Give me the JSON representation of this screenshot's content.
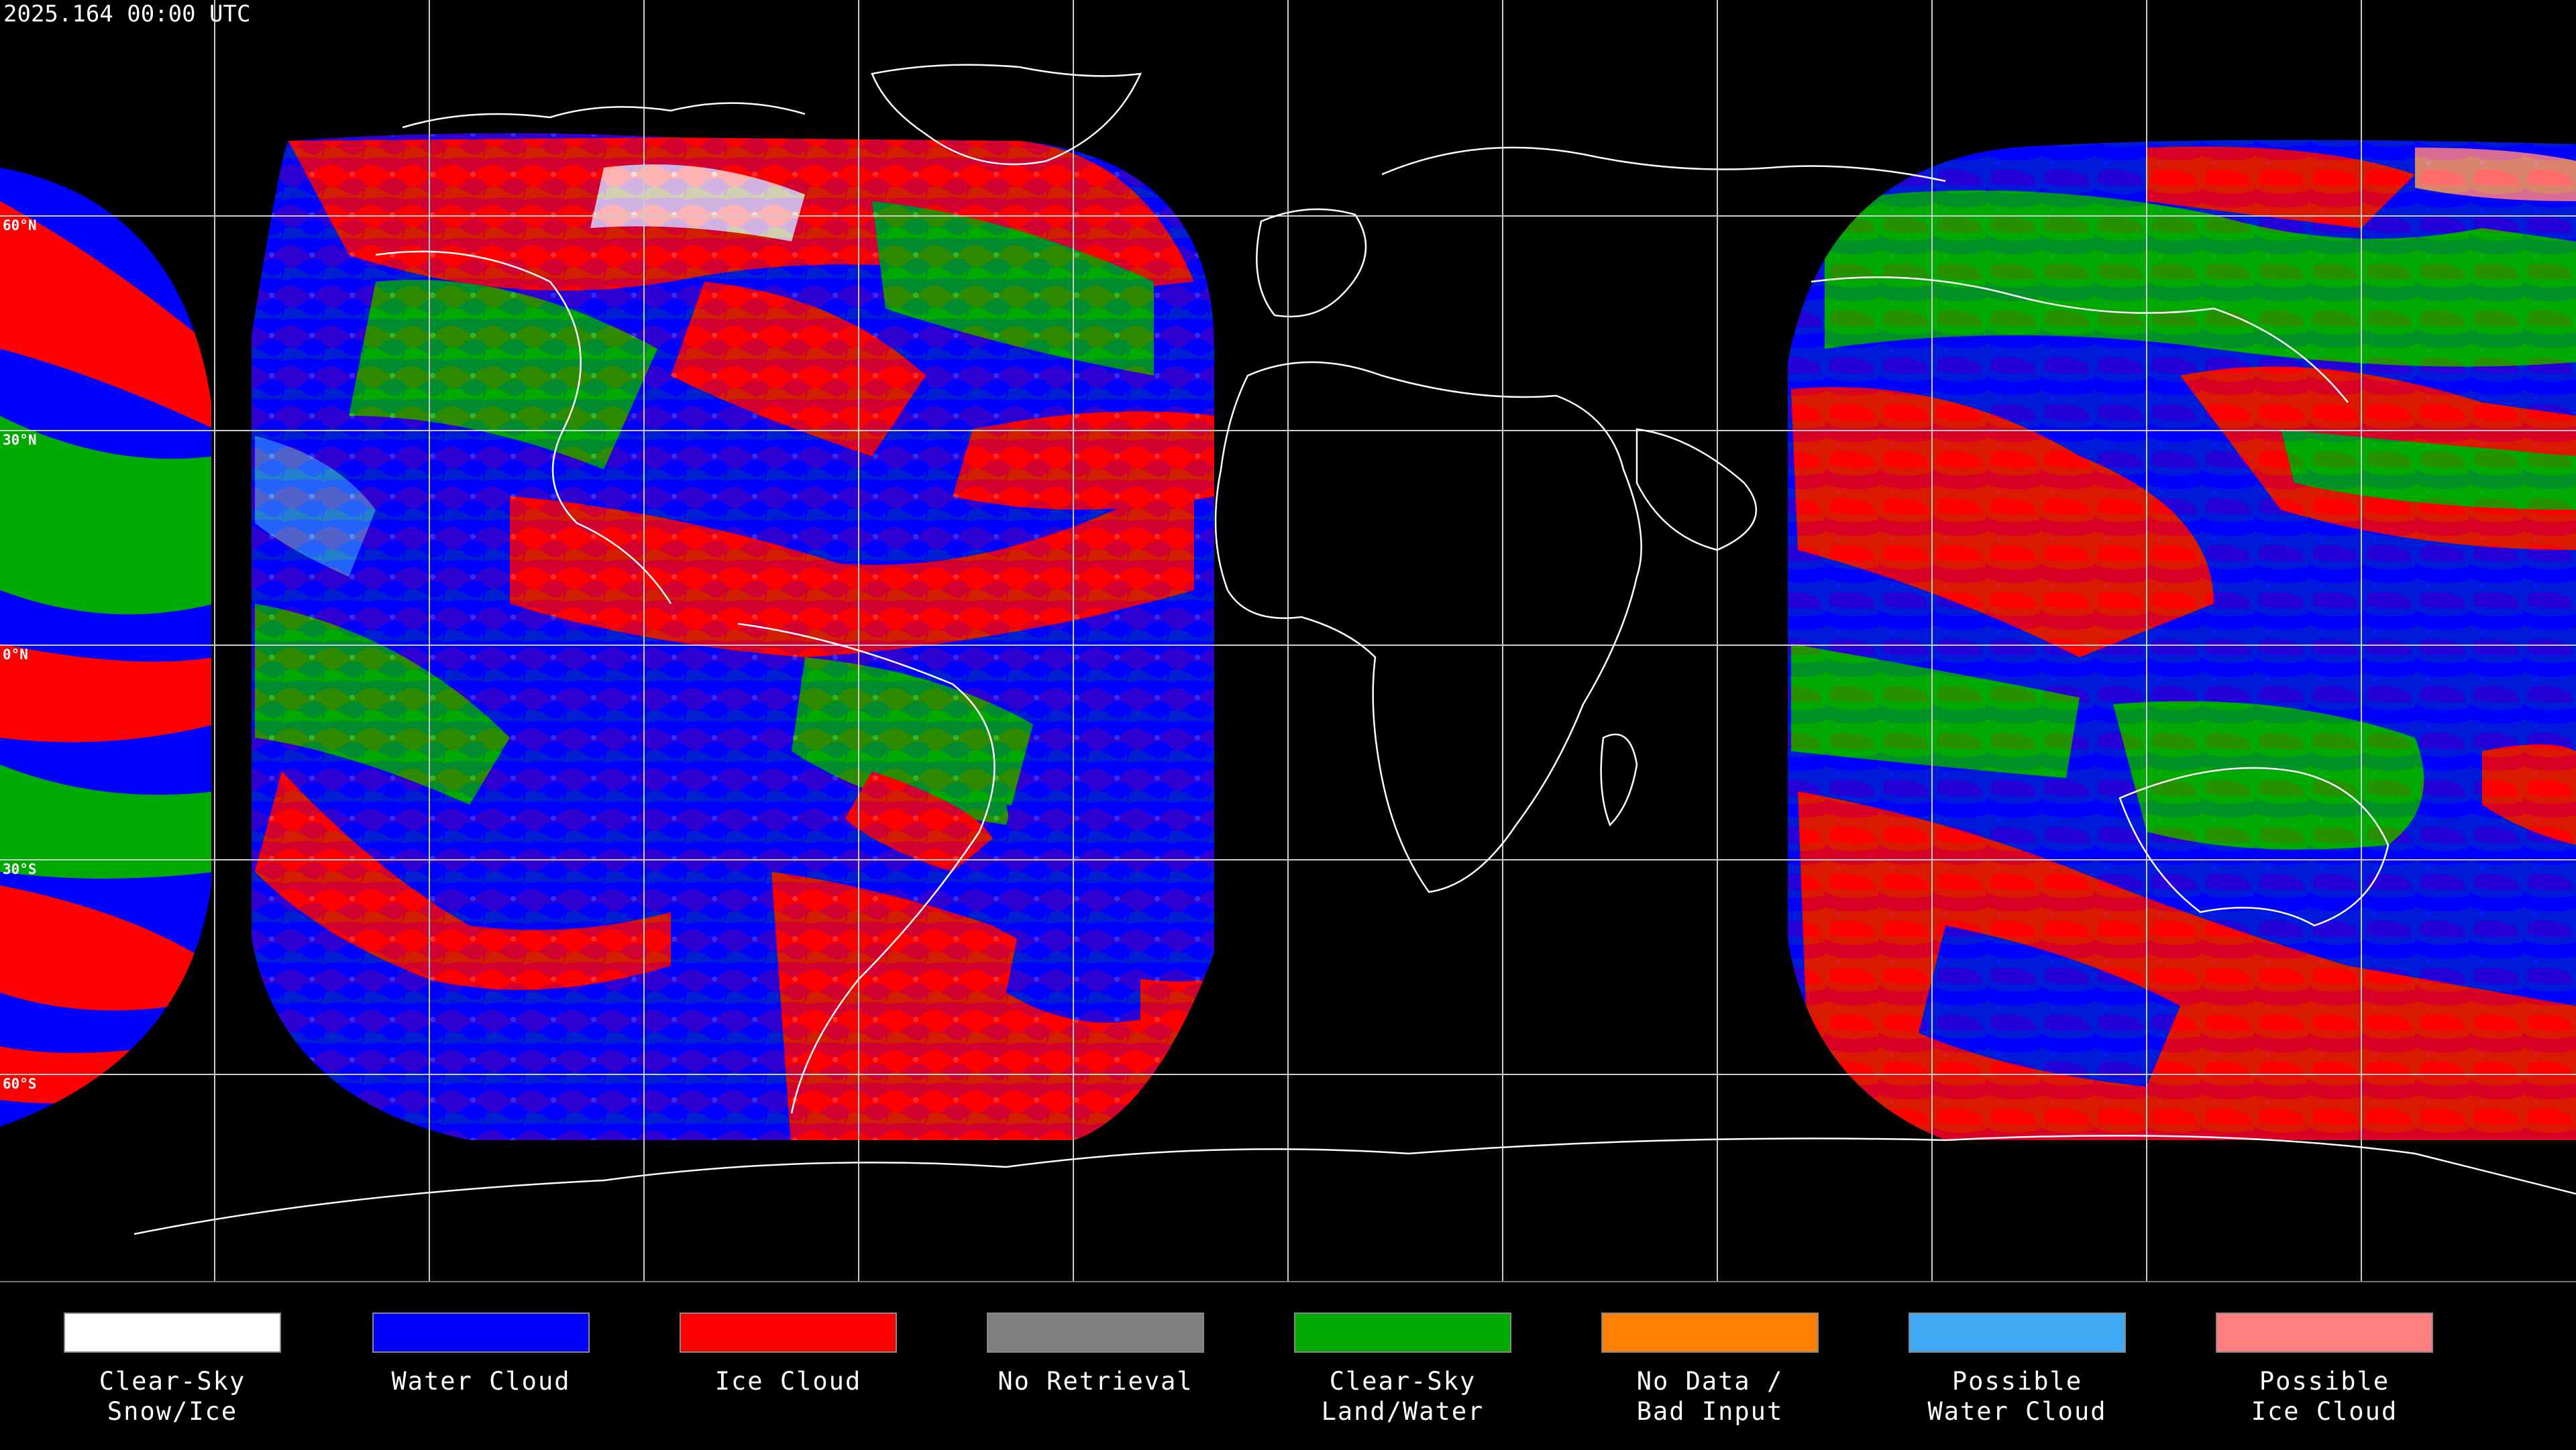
{
  "timestamp": "2025.164 00:00 UTC",
  "latitude_labels": [
    "60°N",
    "30°N",
    "0°N",
    "30°S",
    "60°S"
  ],
  "legend": [
    {
      "label": "Clear-Sky\nSnow/Ice",
      "color": "#ffffff"
    },
    {
      "label": "Water Cloud",
      "color": "#0000ff"
    },
    {
      "label": "Ice Cloud",
      "color": "#ff0000"
    },
    {
      "label": "No Retrieval",
      "color": "#808080"
    },
    {
      "label": "Clear-Sky\nLand/Water",
      "color": "#00aa00"
    },
    {
      "label": "No Data /\nBad Input",
      "color": "#ff8000"
    },
    {
      "label": "Possible\nWater Cloud",
      "color": "#3fa9f5"
    },
    {
      "label": "Possible\nIce Cloud",
      "color": "#ff7f7f"
    }
  ],
  "colors": {
    "background": "#000000",
    "gridlines": "#cccccc",
    "coastlines": "#ffffff"
  }
}
